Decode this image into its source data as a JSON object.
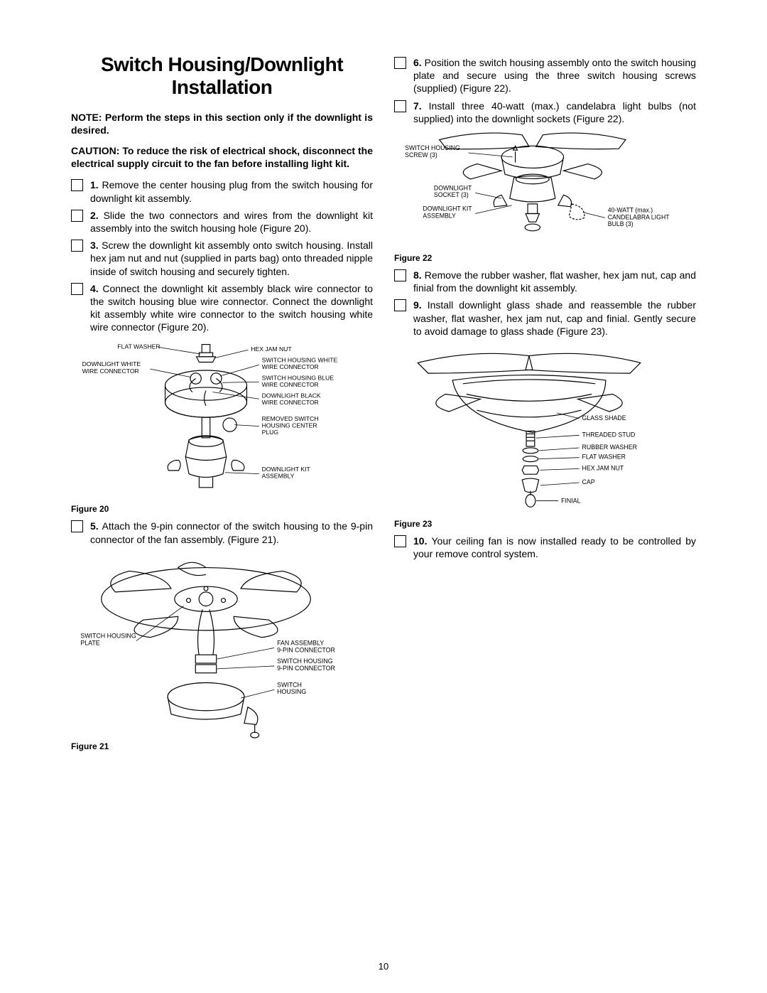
{
  "page_number": "10",
  "title": "Switch Housing/Downlight Installation",
  "note": "NOTE: Perform the steps in this section only if the downlight is desired.",
  "caution": "CAUTION: To reduce the risk of electrical shock, disconnect the electrical supply circuit to the fan before installing light kit.",
  "steps_left": [
    {
      "num": "1.",
      "text": "Remove the center housing plug from the switch housing for downlight kit assembly."
    },
    {
      "num": "2.",
      "text": "Slide the two connectors and wires from the downlight kit assembly into the switch housing hole (Figure 20)."
    },
    {
      "num": "3.",
      "text": "Screw the downlight kit assembly onto switch housing. Install hex jam nut and nut (supplied in parts bag) onto threaded nipple inside of switch housing and securely tighten."
    },
    {
      "num": "4.",
      "text": "Connect the downlight kit assembly black wire connector to the switch housing blue wire connector. Connect the downlight kit assembly white wire connector to the switch housing white wire connector (Figure 20)."
    }
  ],
  "steps_left_2": [
    {
      "num": "5.",
      "text": "Attach the 9-pin connector of the switch housing to the 9-pin connector of the fan assembly. (Figure 21)."
    }
  ],
  "steps_right": [
    {
      "num": "6.",
      "text": "Position the switch housing assembly onto the switch housing plate and secure using the three switch housing screws (supplied) (Figure 22)."
    },
    {
      "num": "7.",
      "text": "Install three 40-watt (max.) candelabra light bulbs (not supplied) into the downlight sockets (Figure 22)."
    }
  ],
  "steps_right_2": [
    {
      "num": "8.",
      "text": "Remove the rubber washer, flat washer, hex jam nut, cap and finial from the downlight kit assembly."
    },
    {
      "num": "9.",
      "text": "Install downlight glass shade and reassemble the rubber washer, flat washer, hex jam nut, cap and finial. Gently secure to avoid damage to glass shade (Figure 23)."
    }
  ],
  "steps_right_3": [
    {
      "num": "10.",
      "text": "Your ceiling fan is now installed ready to be controlled by your remove control system."
    }
  ],
  "figures": {
    "f20": {
      "caption": "Figure 20",
      "labels": {
        "flat_washer": "FLAT WASHER",
        "hex_jam_nut": "HEX JAM NUT",
        "dl_white": "DOWNLIGHT WHITE\nWIRE CONNECTOR",
        "sh_white": "SWITCH HOUSING WHITE\nWIRE CONNECTOR",
        "sh_blue": "SWITCH HOUSING BLUE\nWIRE CONNECTOR",
        "dl_black": "DOWNLIGHT BLACK\nWIRE CONNECTOR",
        "removed_plug": "REMOVED SWITCH\nHOUSING CENTER\nPLUG",
        "dl_kit": "DOWNLIGHT KIT\nASSEMBLY"
      }
    },
    "f21": {
      "caption": "Figure 21",
      "labels": {
        "sh_plate": "SWITCH HOUSING\nPLATE",
        "fan_9pin": "FAN ASSEMBLY\n9-PIN CONNECTOR",
        "sh_9pin": "SWITCH HOUSING\n9-PIN CONNECTOR",
        "sh": "SWITCH\nHOUSING"
      }
    },
    "f22": {
      "caption": "Figure 22",
      "labels": {
        "sh_screw": "SWITCH HOUSING\nSCREW (3)",
        "dl_socket": "DOWNLIGHT\nSOCKET (3)",
        "dl_kit": "DOWNLIGHT KIT\nASSEMBLY",
        "bulb": "40-WATT (max.)\nCANDELABRA LIGHT\nBULB (3)"
      }
    },
    "f23": {
      "caption": "Figure 23",
      "labels": {
        "glass_shade": "GLASS SHADE",
        "threaded_stud": "THREADED STUD",
        "rubber_washer": "RUBBER WASHER",
        "flat_washer": "FLAT WASHER",
        "hex_jam_nut": "HEX JAM NUT",
        "cap": "CAP",
        "finial": "FINIAL"
      }
    }
  }
}
